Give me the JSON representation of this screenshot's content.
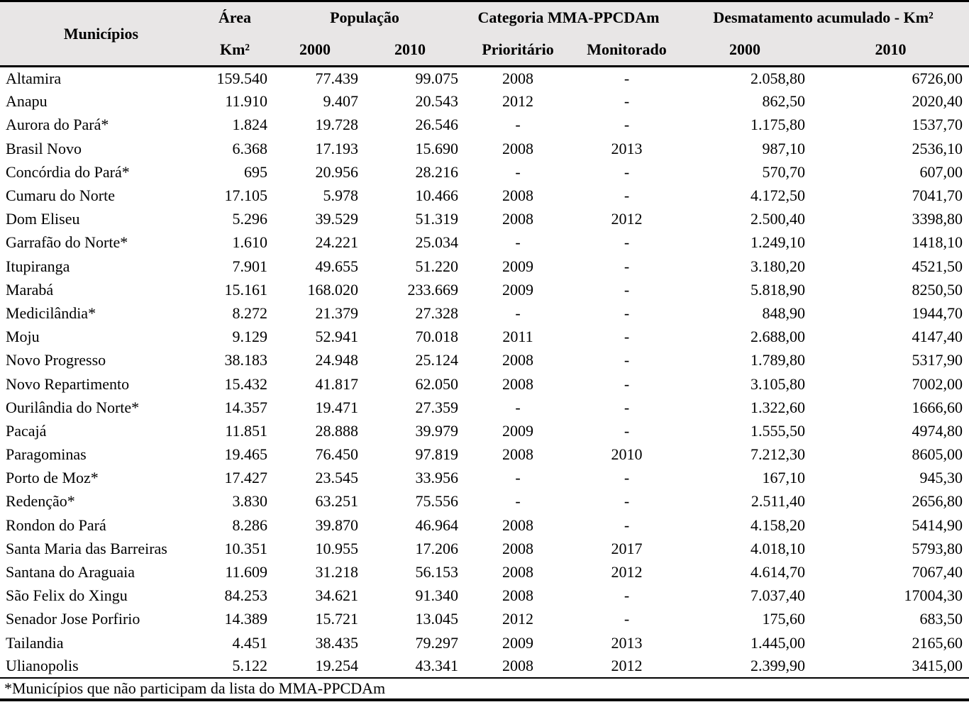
{
  "table": {
    "header": {
      "municipios": "Municípios",
      "area": "Área",
      "area_unit": "Km²",
      "populacao": "População",
      "pop_2000": "2000",
      "pop_2010": "2010",
      "categoria": "Categoria MMA-PPCDAm",
      "prioritario": "Prioritário",
      "monitorado": "Monitorado",
      "desmatamento": "Desmatamento acumulado - Km²",
      "desm_2000": "2000",
      "desm_2010": "2010"
    },
    "columns": [
      "municipio",
      "area_km2",
      "pop_2000",
      "pop_2010",
      "prioritario",
      "monitorado",
      "desm_2000",
      "desm_2010"
    ],
    "rows": [
      [
        "Altamira",
        "159.540",
        "77.439",
        "99.075",
        "2008",
        "-",
        "2.058,80",
        "6726,00"
      ],
      [
        "Anapu",
        "11.910",
        "9.407",
        "20.543",
        "2012",
        "-",
        "862,50",
        "2020,40"
      ],
      [
        "Aurora do Pará*",
        "1.824",
        "19.728",
        "26.546",
        "-",
        "-",
        "1.175,80",
        "1537,70"
      ],
      [
        "Brasil Novo",
        "6.368",
        "17.193",
        "15.690",
        "2008",
        "2013",
        "987,10",
        "2536,10"
      ],
      [
        "Concórdia do Pará*",
        "695",
        "20.956",
        "28.216",
        "-",
        "-",
        "570,70",
        "607,00"
      ],
      [
        "Cumaru do Norte",
        "17.105",
        "5.978",
        "10.466",
        "2008",
        "-",
        "4.172,50",
        "7041,70"
      ],
      [
        "Dom Eliseu",
        "5.296",
        "39.529",
        "51.319",
        "2008",
        "2012",
        "2.500,40",
        "3398,80"
      ],
      [
        "Garrafão do Norte*",
        "1.610",
        "24.221",
        "25.034",
        "-",
        "-",
        "1.249,10",
        "1418,10"
      ],
      [
        "Itupiranga",
        "7.901",
        "49.655",
        "51.220",
        "2009",
        "-",
        "3.180,20",
        "4521,50"
      ],
      [
        "Marabá",
        "15.161",
        "168.020",
        "233.669",
        "2009",
        "-",
        "5.818,90",
        "8250,50"
      ],
      [
        "Medicilândia*",
        "8.272",
        "21.379",
        "27.328",
        "-",
        "-",
        "848,90",
        "1944,70"
      ],
      [
        "Moju",
        "9.129",
        "52.941",
        "70.018",
        "2011",
        "-",
        "2.688,00",
        "4147,40"
      ],
      [
        "Novo Progresso",
        "38.183",
        "24.948",
        "25.124",
        "2008",
        "-",
        "1.789,80",
        "5317,90"
      ],
      [
        "Novo Repartimento",
        "15.432",
        "41.817",
        "62.050",
        "2008",
        "-",
        "3.105,80",
        "7002,00"
      ],
      [
        "Ourilândia do Norte*",
        "14.357",
        "19.471",
        "27.359",
        "-",
        "-",
        "1.322,60",
        "1666,60"
      ],
      [
        "Pacajá",
        "11.851",
        "28.888",
        "39.979",
        "2009",
        "-",
        "1.555,50",
        "4974,80"
      ],
      [
        "Paragominas",
        "19.465",
        "76.450",
        "97.819",
        "2008",
        "2010",
        "7.212,30",
        "8605,00"
      ],
      [
        "Porto de Moz*",
        "17.427",
        "23.545",
        "33.956",
        "-",
        "-",
        "167,10",
        "945,30"
      ],
      [
        "Redenção*",
        "3.830",
        "63.251",
        "75.556",
        "-",
        "-",
        "2.511,40",
        "2656,80"
      ],
      [
        "Rondon do Pará",
        "8.286",
        "39.870",
        "46.964",
        "2008",
        "-",
        "4.158,20",
        "5414,90"
      ],
      [
        "Santa Maria das Barreiras",
        "10.351",
        "10.955",
        "17.206",
        "2008",
        "2017",
        "4.018,10",
        "5793,80"
      ],
      [
        "Santana do Araguaia",
        "11.609",
        "31.218",
        "56.153",
        "2008",
        "2012",
        "4.614,70",
        "7067,40"
      ],
      [
        "São Felix do Xingu",
        "84.253",
        "34.621",
        "91.340",
        "2008",
        "-",
        "7.037,40",
        "17004,30"
      ],
      [
        "Senador Jose Porfirio",
        "14.389",
        "15.721",
        "13.045",
        "2012",
        "-",
        "175,60",
        "683,50"
      ],
      [
        "Tailandia",
        "4.451",
        "38.435",
        "79.297",
        "2009",
        "2013",
        "1.445,00",
        "2165,60"
      ],
      [
        "Ulianopolis",
        "5.122",
        "19.254",
        "43.341",
        "2008",
        "2012",
        "2.399,90",
        "3415,00"
      ]
    ],
    "footnote": "*Municípios que não participam da lista do MMA-PPCDAm"
  },
  "colors": {
    "header_bg": "#e8e6e6",
    "border": "#000000",
    "text": "#000000",
    "background": "#ffffff"
  }
}
